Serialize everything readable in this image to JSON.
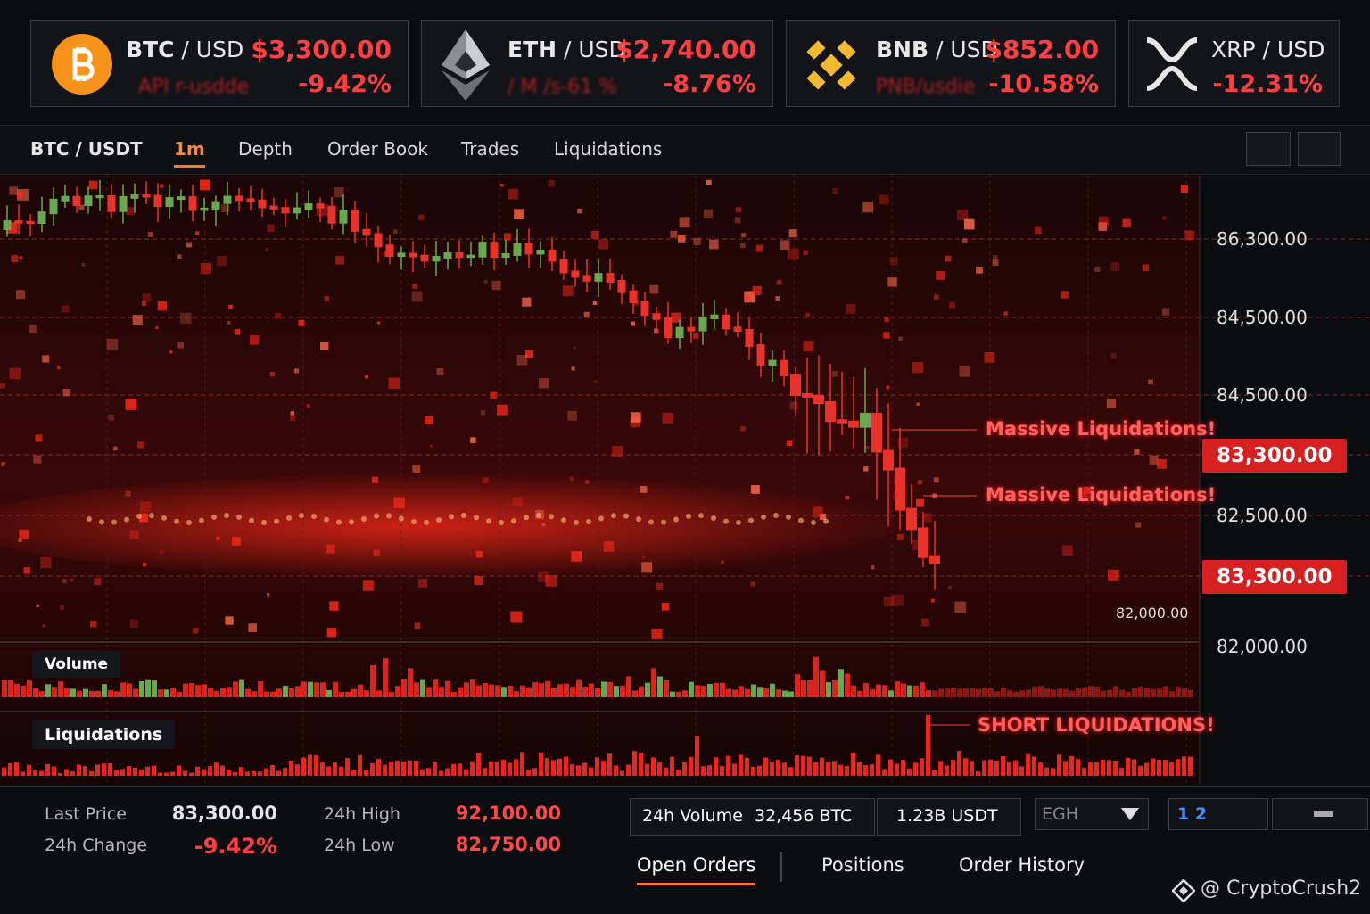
{
  "tickers": [
    {
      "base": "BTC",
      "quote": "/ USD",
      "price": "$3,300.00",
      "change": "-9.42%",
      "subtext": "API r-usdde"
    },
    {
      "base": "ETH",
      "quote": "/ USD",
      "price": "$2,740.00",
      "change": "-8.76%",
      "subtext": "/ M /s-61 %"
    },
    {
      "base": "BNB",
      "quote": "/ USD",
      "price": "$852.00",
      "change": "-10.58%",
      "subtext": "PNB/usdie"
    },
    {
      "base": "XRP",
      "quote": "/ USD",
      "change": "-12.31%"
    }
  ],
  "toolbar": {
    "symbol": "BTC / USDT",
    "tabs": [
      "1m",
      "Depth",
      "Order Book",
      "Trades",
      "Liquidations"
    ]
  },
  "price_axis": [
    "86,300.00",
    "84,500.00",
    "84,500.00",
    "83,300.00",
    "82,500.00",
    "83,300.00",
    "82,000.00"
  ],
  "inline_price": "82,000.00",
  "annotations": [
    "Massive Liquidations!",
    "Massive Liquidations!",
    "SHORT LIQUIDATIONS!"
  ],
  "panels": {
    "volume": "Volume",
    "liquidations": "Liquidations"
  },
  "stats": {
    "last_price": {
      "label": "Last Price",
      "value": "83,300.00"
    },
    "change_24h": {
      "label": "24h Change",
      "value": "-9.42%"
    },
    "high_24h": {
      "label": "24h High",
      "value": "92,100.00"
    },
    "low_24h": {
      "label": "24h Low",
      "value": "82,750.00"
    },
    "volume_24h": {
      "label": "24h Volume",
      "value": "32,456 BTC"
    },
    "volume_usdt": "1.23B USDT",
    "selector": "EGH",
    "pager": "1 2"
  },
  "bottom_tabs": [
    "Open Orders",
    "Positions",
    "Order History"
  ],
  "watermark": "@ CryptoCrush2"
}
